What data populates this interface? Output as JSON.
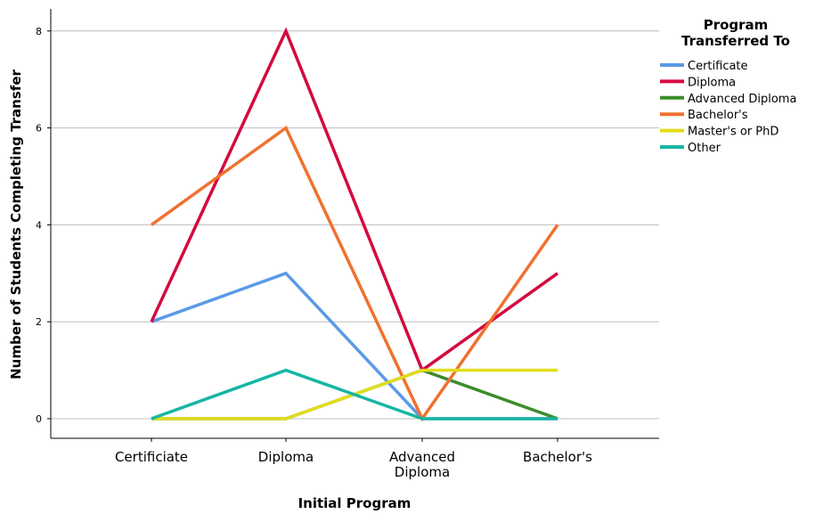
{
  "chart_data": {
    "type": "line",
    "xlabel": "Initial Program",
    "ylabel": "Number of Students Completing Transfer",
    "ylim": [
      0,
      8.6
    ],
    "yticks": [
      0,
      2,
      4,
      6,
      8
    ],
    "grid": "horizontal",
    "legend_position": "top-right",
    "legend_title": [
      "Program",
      "Transferred To"
    ],
    "categories": [
      [
        "Certificiate"
      ],
      [
        "Diploma"
      ],
      [
        "Advanced",
        "Diploma"
      ],
      [
        "Bachelor's"
      ]
    ],
    "series": [
      {
        "name": "Certificate",
        "color": "#5b9ae6",
        "values": [
          2,
          3,
          0,
          0
        ]
      },
      {
        "name": "Diploma",
        "color": "#d4093f",
        "values": [
          2,
          8,
          1,
          3
        ]
      },
      {
        "name": "Advanced Diploma",
        "color": "#3c8c2a",
        "values": [
          0,
          0,
          1,
          0
        ]
      },
      {
        "name": "Bachelor's",
        "color": "#f07130",
        "values": [
          4,
          6,
          0,
          4
        ]
      },
      {
        "name": "Master's or PhD",
        "color": "#e2dd1c",
        "values": [
          0,
          0,
          1,
          1
        ]
      },
      {
        "name": "Other",
        "color": "#16b5a4",
        "values": [
          0,
          1,
          0,
          0
        ]
      }
    ]
  }
}
